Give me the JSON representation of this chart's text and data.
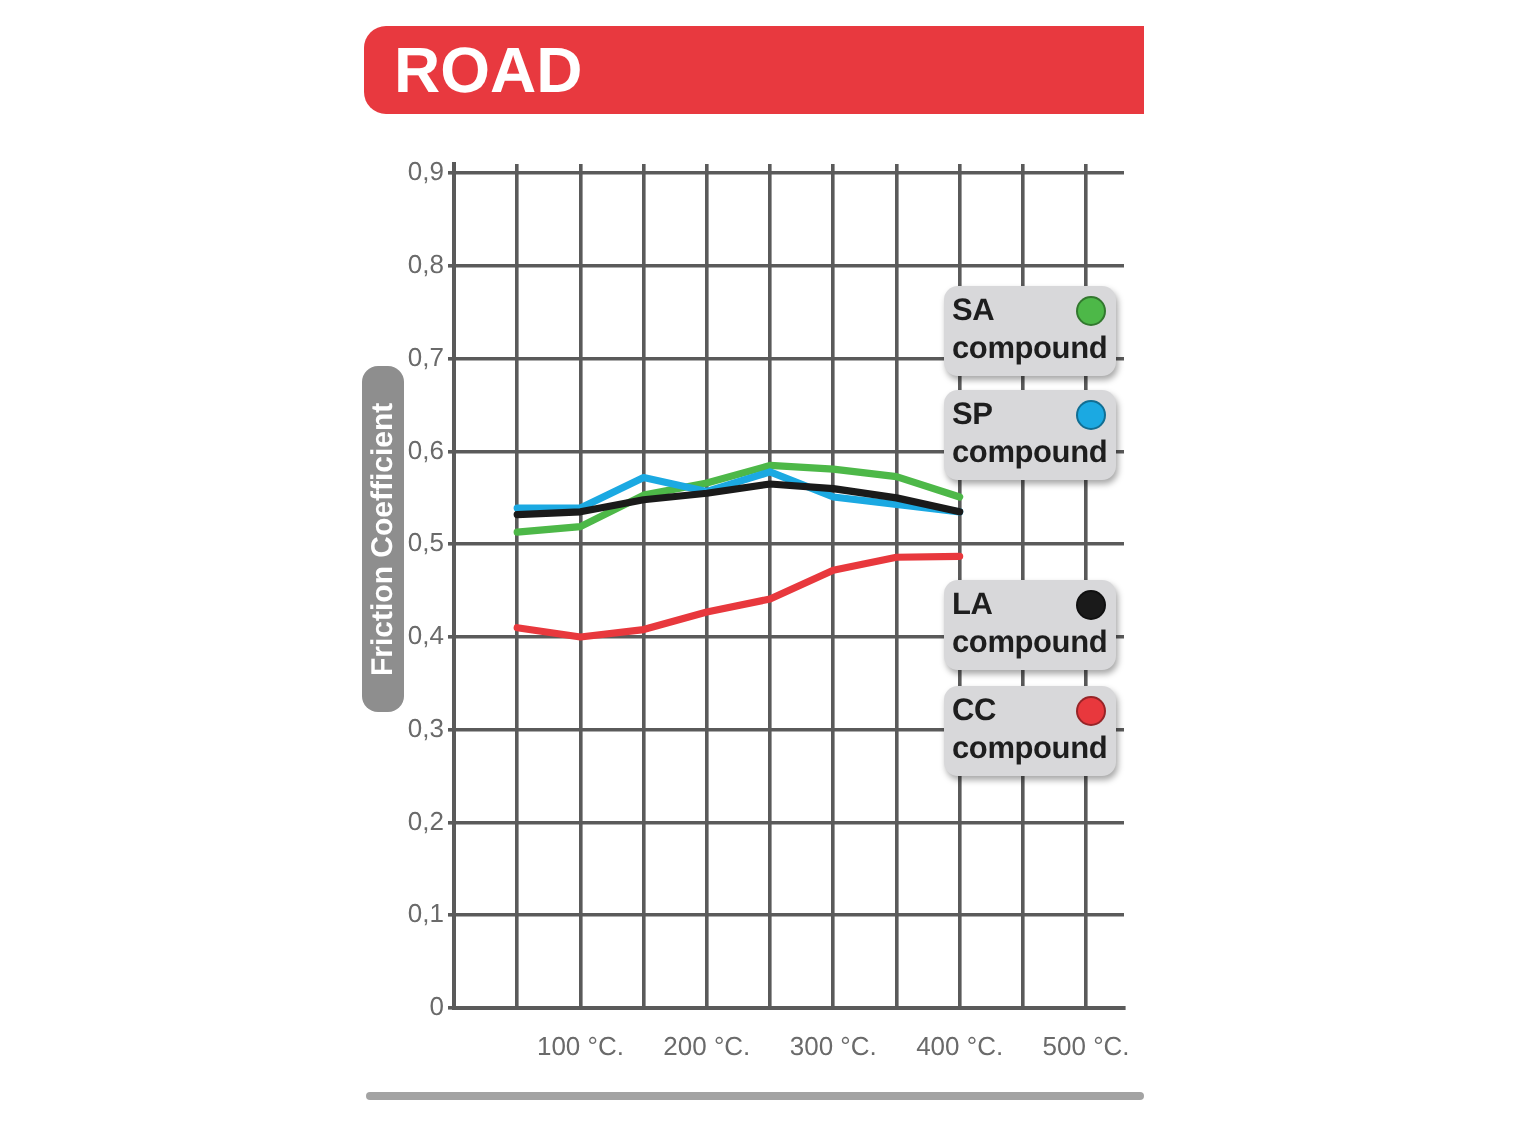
{
  "chart_data": {
    "type": "line",
    "title": "ROAD",
    "ylabel": "Friction Coefficient",
    "x": [
      50,
      100,
      150,
      200,
      250,
      300,
      350,
      400
    ],
    "series": [
      {
        "name": "SA compound",
        "color": "#4db848",
        "values": [
          0.513,
          0.519,
          0.553,
          0.566,
          0.585,
          0.581,
          0.573,
          0.551
        ]
      },
      {
        "name": "SP compound",
        "color": "#1ba9e2",
        "values": [
          0.539,
          0.539,
          0.572,
          0.557,
          0.578,
          0.551,
          0.543,
          0.535
        ]
      },
      {
        "name": "LA compound",
        "color": "#1a1a1a",
        "values": [
          0.532,
          0.535,
          0.548,
          0.555,
          0.565,
          0.56,
          0.55,
          0.535
        ]
      },
      {
        "name": "CC compound",
        "color": "#e8383d",
        "values": [
          0.41,
          0.4,
          0.408,
          0.427,
          0.441,
          0.472,
          0.486,
          0.487
        ]
      }
    ],
    "xlim": [
      0,
      530
    ],
    "xticks": [
      {
        "value": 50,
        "label": null
      },
      {
        "value": 100,
        "label": "100 °C."
      },
      {
        "value": 150,
        "label": null
      },
      {
        "value": 200,
        "label": "200 °C."
      },
      {
        "value": 250,
        "label": null
      },
      {
        "value": 300,
        "label": "300 °C."
      },
      {
        "value": 350,
        "label": null
      },
      {
        "value": 400,
        "label": "400 °C."
      },
      {
        "value": 450,
        "label": null
      },
      {
        "value": 500,
        "label": "500 °C."
      }
    ],
    "ylim": [
      0,
      0.91
    ],
    "yticks": [
      0,
      {
        "value": 0.1,
        "label": "0,1"
      },
      {
        "value": 0.2,
        "label": "0,2"
      },
      {
        "value": 0.3,
        "label": "0,3"
      },
      {
        "value": 0.4,
        "label": "0,4"
      },
      {
        "value": 0.5,
        "label": "0,5"
      },
      {
        "value": 0.6,
        "label": "0,6"
      },
      {
        "value": 0.7,
        "label": "0,7"
      },
      {
        "value": 0.8,
        "label": "0,8"
      },
      {
        "value": 0.9,
        "label": "0,9"
      }
    ],
    "grid": true,
    "legend": "right",
    "marker": "none"
  }
}
